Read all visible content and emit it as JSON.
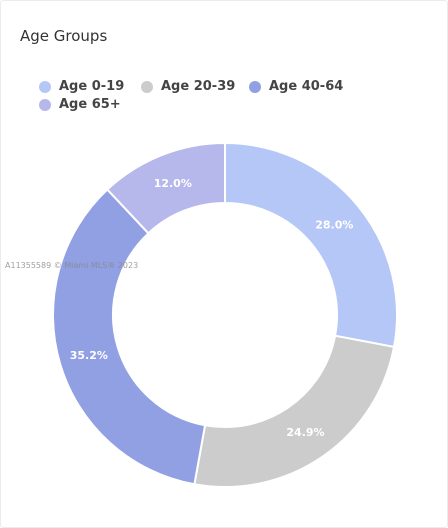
{
  "chart_data": {
    "type": "pie",
    "title": "Age Groups",
    "categories": [
      "Age 0-19",
      "Age 20-39",
      "Age 40-64",
      "Age 65+"
    ],
    "values": [
      28.0,
      24.9,
      35.2,
      12.0
    ],
    "value_labels": [
      "28.0%",
      "24.9%",
      "35.2%",
      "12.0%"
    ],
    "colors": [
      "#b5c7f7",
      "#cccccc",
      "#919fe3",
      "#b6b8ec"
    ],
    "donut": true,
    "legend_position": "top-left"
  },
  "legend": [
    {
      "label": "Age 0-19",
      "color": "#b5c7f7"
    },
    {
      "label": "Age 20-39",
      "color": "#cccccc"
    },
    {
      "label": "Age 40-64",
      "color": "#919fe3"
    },
    {
      "label": "Age 65+",
      "color": "#b6b8ec"
    }
  ],
  "watermark": "A11355589 © Miami MLS® 2023"
}
